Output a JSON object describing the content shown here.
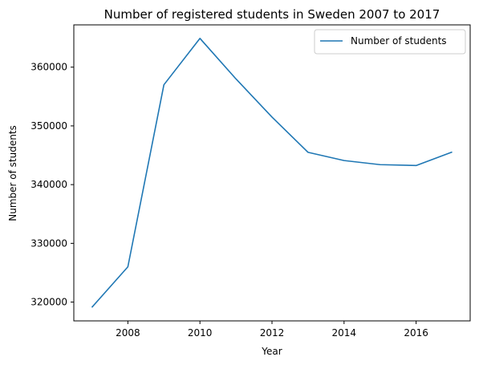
{
  "chart_data": {
    "type": "line",
    "title": "Number of registered students in Sweden 2007 to 2017",
    "xlabel": "Year",
    "ylabel": "Number of students",
    "x": [
      2007,
      2008,
      2009,
      2010,
      2011,
      2012,
      2013,
      2014,
      2015,
      2016,
      2017
    ],
    "series": [
      {
        "name": "Number of students",
        "color": "#1f77b4",
        "values": [
          319100,
          326000,
          357000,
          364900,
          358000,
          351500,
          345500,
          344100,
          343400,
          343250,
          345550
        ]
      }
    ],
    "xlim": [
      2006.5,
      2017.5
    ],
    "ylim": [
      316800,
      367200
    ],
    "xticks": [
      2008,
      2010,
      2012,
      2014,
      2016
    ],
    "xtick_labels": [
      "2008",
      "2010",
      "2012",
      "2014",
      "2016"
    ],
    "yticks": [
      320000,
      330000,
      340000,
      350000,
      360000
    ],
    "ytick_labels": [
      "320000",
      "330000",
      "340000",
      "350000",
      "360000"
    ],
    "grid": false,
    "legend_position": "top-right"
  }
}
